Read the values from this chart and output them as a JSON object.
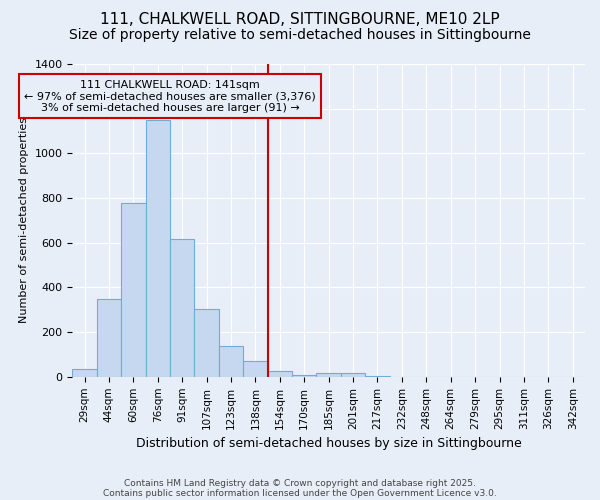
{
  "title1": "111, CHALKWELL ROAD, SITTINGBOURNE, ME10 2LP",
  "title2": "Size of property relative to semi-detached houses in Sittingbourne",
  "xlabel": "Distribution of semi-detached houses by size in Sittingbourne",
  "ylabel": "Number of semi-detached properties",
  "bin_labels": [
    "29sqm",
    "44sqm",
    "60sqm",
    "76sqm",
    "91sqm",
    "107sqm",
    "123sqm",
    "138sqm",
    "154sqm",
    "170sqm",
    "185sqm",
    "201sqm",
    "217sqm",
    "232sqm",
    "248sqm",
    "264sqm",
    "279sqm",
    "295sqm",
    "311sqm",
    "326sqm",
    "342sqm"
  ],
  "bin_values": [
    35,
    350,
    780,
    1150,
    615,
    305,
    140,
    70,
    25,
    10,
    15,
    15,
    5,
    0,
    0,
    0,
    0,
    0,
    0,
    0,
    0
  ],
  "bar_color": "#c5d8f0",
  "bar_edge_color": "#6baed6",
  "vline_x_idx": 7,
  "vline_color": "#cc0000",
  "annotation_text": "111 CHALKWELL ROAD: 141sqm\n← 97% of semi-detached houses are smaller (3,376)\n3% of semi-detached houses are larger (91) →",
  "annotation_box_color": "#cc0000",
  "ylim": [
    0,
    1400
  ],
  "yticks": [
    0,
    200,
    400,
    600,
    800,
    1000,
    1200,
    1400
  ],
  "footnote1": "Contains HM Land Registry data © Crown copyright and database right 2025.",
  "footnote2": "Contains public sector information licensed under the Open Government Licence v3.0.",
  "bg_color": "#e8eef8",
  "grid_color": "#ffffff",
  "title1_fontsize": 11,
  "title2_fontsize": 10
}
